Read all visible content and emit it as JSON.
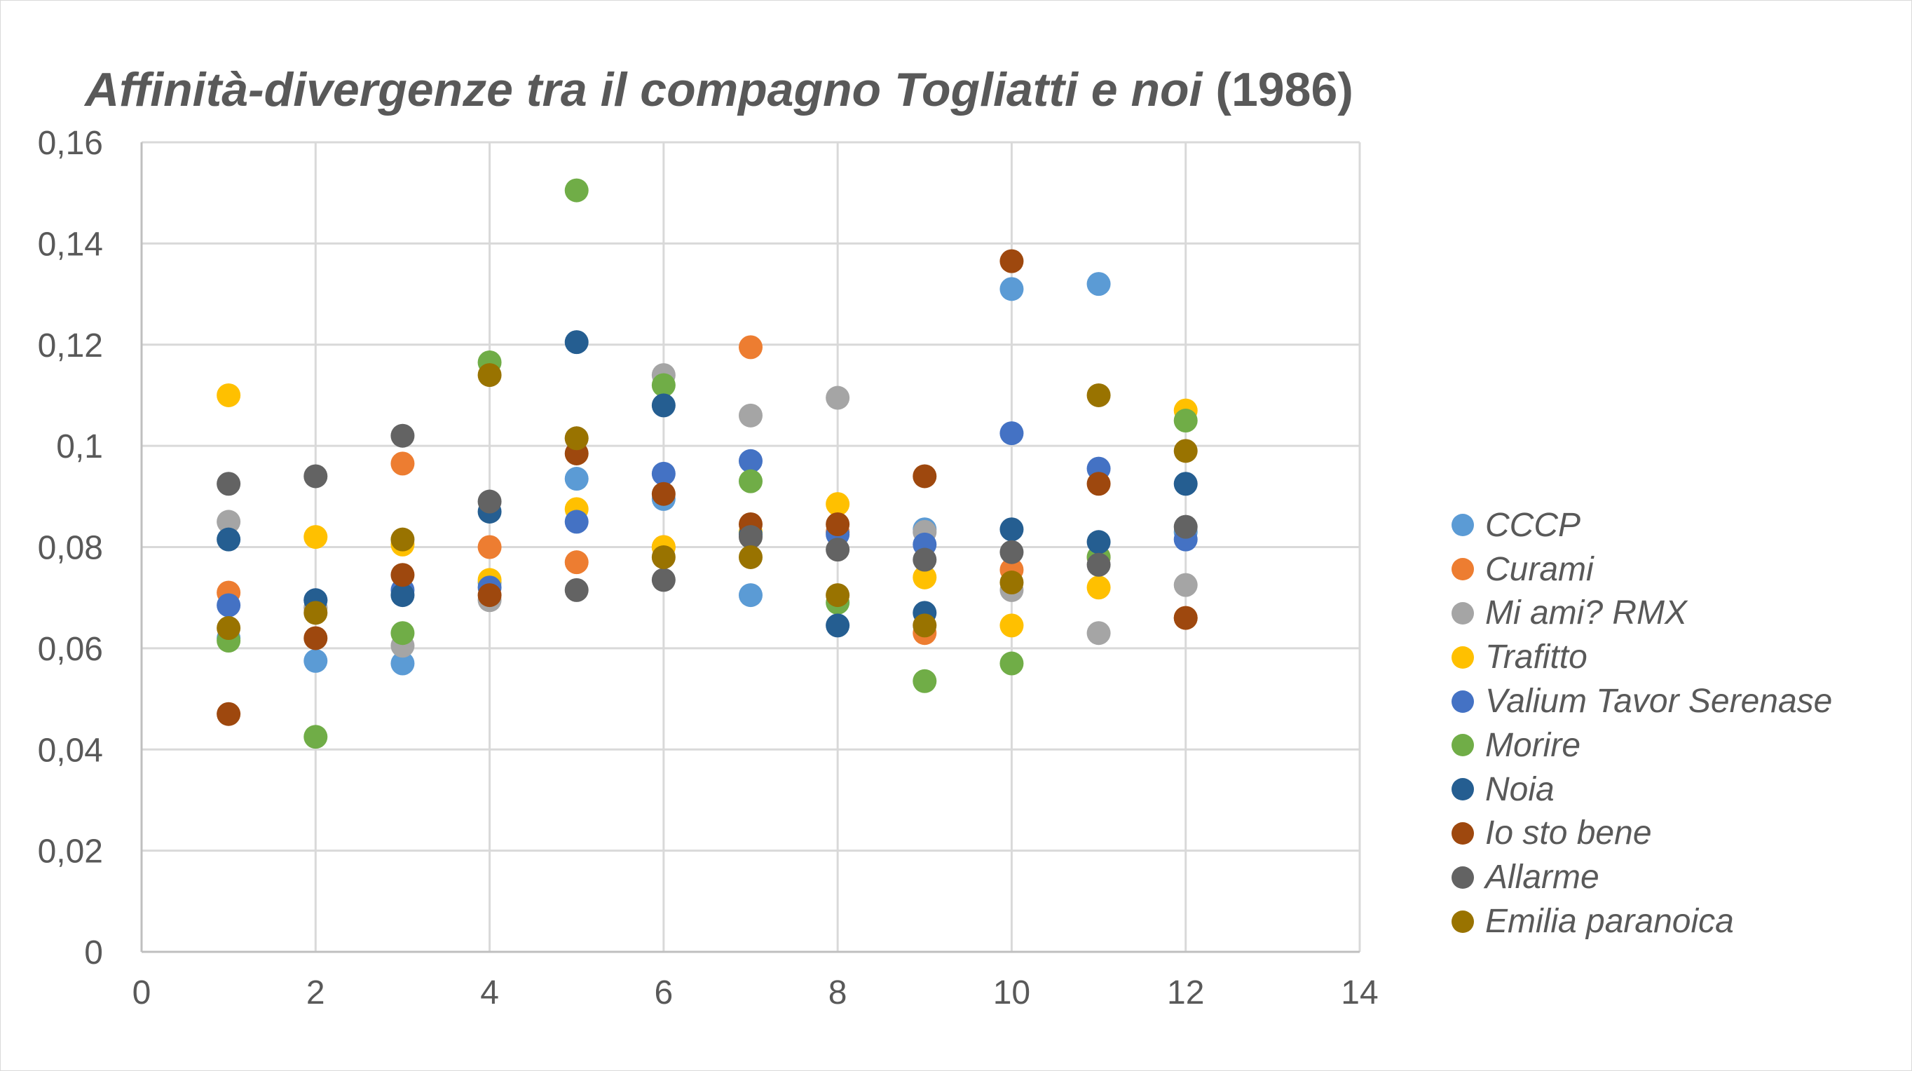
{
  "chart_data": {
    "type": "scatter",
    "title": "Affinità-divergenze tra il compagno Togliatti e noi",
    "title_suffix": "(1986)",
    "xlabel": "",
    "ylabel": "",
    "xlim": [
      0,
      14
    ],
    "ylim": [
      0,
      0.16
    ],
    "x_ticks": [
      "0",
      "2",
      "4",
      "6",
      "8",
      "10",
      "12",
      "14"
    ],
    "y_ticks": [
      "0",
      "0,02",
      "0,04",
      "0,06",
      "0,08",
      "0,1",
      "0,12",
      "0,14",
      "0,16"
    ],
    "grid": true,
    "legend_position": "right",
    "series": [
      {
        "name": "CCCP",
        "color": "#5B9BD5",
        "points": [
          [
            1,
            0.062
          ],
          [
            2,
            0.0575
          ],
          [
            3,
            0.057
          ],
          [
            4,
            0.073
          ],
          [
            5,
            0.0935
          ],
          [
            6,
            0.0895
          ],
          [
            7,
            0.0705
          ],
          [
            8,
            0.083
          ],
          [
            9,
            0.0835
          ],
          [
            10,
            0.131
          ],
          [
            11,
            0.132
          ],
          [
            12,
            0.083
          ]
        ]
      },
      {
        "name": "Curami",
        "color": "#ED7D31",
        "points": [
          [
            1,
            0.071
          ],
          [
            2,
            0.068
          ],
          [
            3,
            0.0965
          ],
          [
            4,
            0.08
          ],
          [
            5,
            0.077
          ],
          [
            6,
            0.08
          ],
          [
            7,
            0.1195
          ],
          [
            8,
            0.083
          ],
          [
            9,
            0.063
          ],
          [
            10,
            0.0755
          ],
          [
            11,
            0.078
          ],
          [
            12,
            0.066
          ]
        ]
      },
      {
        "name": "Mi ami? RMX",
        "color": "#A5A5A5",
        "points": [
          [
            1,
            0.085
          ],
          [
            2,
            0.068
          ],
          [
            3,
            0.0605
          ],
          [
            4,
            0.0695
          ],
          [
            5,
            0.1015
          ],
          [
            6,
            0.114
          ],
          [
            7,
            0.106
          ],
          [
            8,
            0.1095
          ],
          [
            9,
            0.083
          ],
          [
            10,
            0.0715
          ],
          [
            11,
            0.063
          ],
          [
            12,
            0.0725
          ]
        ]
      },
      {
        "name": "Trafitto",
        "color": "#FFC000",
        "points": [
          [
            1,
            0.11
          ],
          [
            2,
            0.082
          ],
          [
            3,
            0.0805
          ],
          [
            4,
            0.0735
          ],
          [
            5,
            0.0875
          ],
          [
            6,
            0.08
          ],
          [
            7,
            0.083
          ],
          [
            8,
            0.0885
          ],
          [
            9,
            0.074
          ],
          [
            10,
            0.0645
          ],
          [
            11,
            0.072
          ],
          [
            12,
            0.107
          ]
        ]
      },
      {
        "name": "Valium Tavor Serenase",
        "color": "#4472C4",
        "points": [
          [
            1,
            0.0685
          ],
          [
            2,
            0.0695
          ],
          [
            3,
            0.0715
          ],
          [
            4,
            0.072
          ],
          [
            5,
            0.085
          ],
          [
            6,
            0.0945
          ],
          [
            7,
            0.097
          ],
          [
            8,
            0.0825
          ],
          [
            9,
            0.0805
          ],
          [
            10,
            0.1025
          ],
          [
            11,
            0.0955
          ],
          [
            12,
            0.0815
          ]
        ]
      },
      {
        "name": "Morire",
        "color": "#70AD47",
        "points": [
          [
            1,
            0.0615
          ],
          [
            2,
            0.0425
          ],
          [
            3,
            0.063
          ],
          [
            4,
            0.1165
          ],
          [
            5,
            0.1505
          ],
          [
            6,
            0.112
          ],
          [
            7,
            0.093
          ],
          [
            8,
            0.069
          ],
          [
            9,
            0.0535
          ],
          [
            10,
            0.057
          ],
          [
            11,
            0.078
          ],
          [
            12,
            0.105
          ]
        ]
      },
      {
        "name": "Noia",
        "color": "#255E91",
        "points": [
          [
            1,
            0.0815
          ],
          [
            2,
            0.0695
          ],
          [
            3,
            0.0705
          ],
          [
            4,
            0.087
          ],
          [
            5,
            0.1205
          ],
          [
            6,
            0.108
          ],
          [
            7,
            0.0825
          ],
          [
            8,
            0.0645
          ],
          [
            9,
            0.067
          ],
          [
            10,
            0.0835
          ],
          [
            11,
            0.081
          ],
          [
            12,
            0.0925
          ]
        ]
      },
      {
        "name": "Io sto bene",
        "color": "#9E480E",
        "points": [
          [
            1,
            0.047
          ],
          [
            2,
            0.062
          ],
          [
            3,
            0.0745
          ],
          [
            4,
            0.0705
          ],
          [
            5,
            0.0985
          ],
          [
            6,
            0.0905
          ],
          [
            7,
            0.0845
          ],
          [
            8,
            0.0845
          ],
          [
            9,
            0.094
          ],
          [
            10,
            0.1365
          ],
          [
            11,
            0.0925
          ],
          [
            12,
            0.066
          ]
        ]
      },
      {
        "name": "Allarme",
        "color": "#636363",
        "points": [
          [
            1,
            0.0925
          ],
          [
            2,
            0.094
          ],
          [
            3,
            0.102
          ],
          [
            4,
            0.089
          ],
          [
            5,
            0.0715
          ],
          [
            6,
            0.0735
          ],
          [
            7,
            0.082
          ],
          [
            8,
            0.0795
          ],
          [
            9,
            0.0775
          ],
          [
            10,
            0.079
          ],
          [
            11,
            0.0765
          ],
          [
            12,
            0.084
          ]
        ]
      },
      {
        "name": "Emilia paranoica",
        "color": "#997300",
        "points": [
          [
            1,
            0.064
          ],
          [
            2,
            0.067
          ],
          [
            3,
            0.0815
          ],
          [
            4,
            0.114
          ],
          [
            5,
            0.1015
          ],
          [
            6,
            0.078
          ],
          [
            7,
            0.078
          ],
          [
            8,
            0.0705
          ],
          [
            9,
            0.0645
          ],
          [
            10,
            0.073
          ],
          [
            11,
            0.11
          ],
          [
            12,
            0.099
          ]
        ]
      }
    ]
  }
}
